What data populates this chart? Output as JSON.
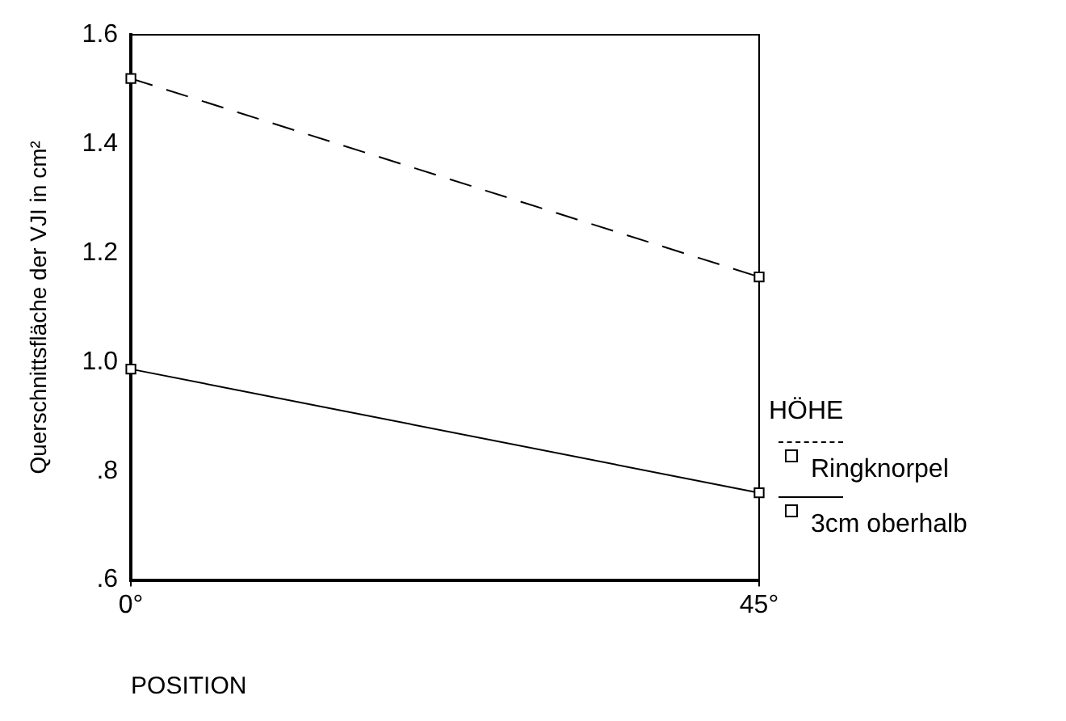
{
  "chart_data": {
    "type": "line",
    "xlabel": "POSITION",
    "ylabel": "Querschnittsfläche der VJI in cm²",
    "legend_title": "HÖHE",
    "categories": [
      "0°",
      "45°"
    ],
    "series": [
      {
        "name": "Ringknorpel",
        "color": "#000000",
        "values": [
          1.52,
          1.156
        ],
        "line_style": "dashed"
      },
      {
        "name": "3cm oberhalb",
        "color": "#000000",
        "values": [
          0.987,
          0.76
        ],
        "line_style": "solid"
      }
    ],
    "ylim": [
      0.6,
      1.6
    ],
    "yticks": [
      1.6,
      1.4,
      1.2,
      {
        "value": 1,
        "label": "1.0"
      },
      {
        "value": 0.8,
        "label": ".8"
      },
      {
        "value": 0.6,
        "label": ".6"
      }
    ],
    "grid": "x",
    "legend": "right",
    "marker": "square"
  }
}
